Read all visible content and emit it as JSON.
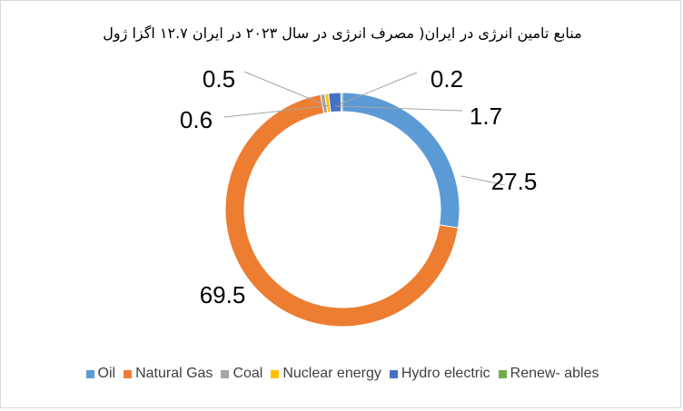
{
  "chart_data": {
    "type": "doughnut",
    "title": "منابع تامین انرژی در ایران( مصرف انرژی در سال ۲۰۲۳ در ایران ۱۲.۷ اگزا ژول",
    "series": [
      {
        "name": "Oil",
        "value": 27.5,
        "label": "27.5",
        "color": "#5B9BD5"
      },
      {
        "name": "Natural Gas",
        "value": 69.5,
        "label": "69.5",
        "color": "#ED7D31"
      },
      {
        "name": "Coal",
        "value": 0.6,
        "label": "0.6",
        "color": "#A5A5A5"
      },
      {
        "name": "Nuclear energy",
        "value": 0.5,
        "label": "0.5",
        "color": "#FFC000"
      },
      {
        "name": "Hydro electric",
        "value": 1.7,
        "label": "1.7",
        "color": "#4472C4"
      },
      {
        "name": "Renew- ables",
        "value": 0.2,
        "label": "0.2",
        "color": "#70AD47"
      }
    ],
    "legend_position": "bottom"
  }
}
